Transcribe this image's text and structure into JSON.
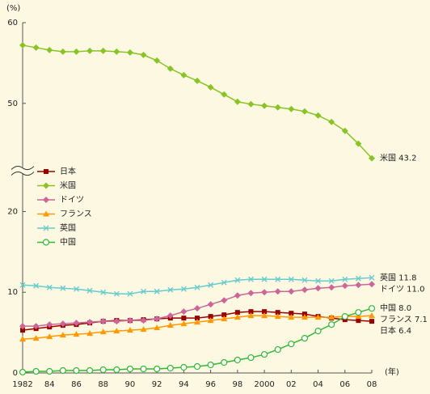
{
  "chart_data": {
    "type": "line",
    "y_unit": "(%)",
    "x_unit": "(年)",
    "x": [
      1982,
      1983,
      1984,
      1985,
      1986,
      1987,
      1988,
      1989,
      1990,
      1991,
      1992,
      1993,
      1994,
      1995,
      1996,
      1997,
      1998,
      1999,
      2000,
      2001,
      2002,
      2003,
      2004,
      2005,
      2006,
      2007,
      2008
    ],
    "xlim": [
      1982,
      2008
    ],
    "xticks": [
      {
        "value": 1982,
        "label": "1982"
      },
      {
        "value": 1984,
        "label": "84"
      },
      {
        "value": 1986,
        "label": "86"
      },
      {
        "value": 1988,
        "label": "88"
      },
      {
        "value": 1990,
        "label": "90"
      },
      {
        "value": 1992,
        "label": "92"
      },
      {
        "value": 1994,
        "label": "94"
      },
      {
        "value": 1996,
        "label": "96"
      },
      {
        "value": 1998,
        "label": "98"
      },
      {
        "value": 2000,
        "label": "2000"
      },
      {
        "value": 2002,
        "label": "02"
      },
      {
        "value": 2004,
        "label": "04"
      },
      {
        "value": 2006,
        "label": "06"
      },
      {
        "value": 2008,
        "label": "08"
      }
    ],
    "ylim": [
      0,
      60
    ],
    "y_break": [
      25,
      41.6
    ],
    "yticks": [
      0,
      10,
      20,
      50,
      60
    ],
    "legend": "left",
    "series": [
      {
        "name": "日本",
        "color": "#990000",
        "marker": "square",
        "end_label": "日本 6.4",
        "values": [
          5.3,
          5.5,
          5.7,
          5.9,
          6.0,
          6.2,
          6.4,
          6.5,
          6.5,
          6.6,
          6.7,
          6.8,
          6.8,
          6.8,
          7.0,
          7.2,
          7.5,
          7.6,
          7.6,
          7.5,
          7.4,
          7.3,
          7.0,
          6.8,
          6.6,
          6.5,
          6.4
        ]
      },
      {
        "name": "米国",
        "color": "#88c425",
        "marker": "diamond",
        "end_label": "米国 43.2",
        "values": [
          57.2,
          56.9,
          56.6,
          56.4,
          56.4,
          56.5,
          56.5,
          56.4,
          56.3,
          56.0,
          55.3,
          54.3,
          53.5,
          52.8,
          52.0,
          51.1,
          50.2,
          49.9,
          49.7,
          49.5,
          49.3,
          49.0,
          48.5,
          47.7,
          46.6,
          45.0,
          43.2
        ]
      },
      {
        "name": "ドイツ",
        "color": "#cc6699",
        "marker": "diamond",
        "end_label": "ドイツ 11.0",
        "values": [
          5.8,
          5.8,
          6.0,
          6.1,
          6.2,
          6.3,
          6.4,
          6.4,
          6.5,
          6.5,
          6.7,
          7.1,
          7.6,
          8.0,
          8.5,
          9.0,
          9.6,
          9.9,
          10.0,
          10.1,
          10.1,
          10.3,
          10.5,
          10.6,
          10.8,
          10.9,
          11.0
        ]
      },
      {
        "name": "フランス",
        "color": "#ff9900",
        "marker": "triangle",
        "end_label": "フランス 7.1",
        "values": [
          4.2,
          4.3,
          4.5,
          4.7,
          4.8,
          4.9,
          5.1,
          5.2,
          5.3,
          5.4,
          5.6,
          5.9,
          6.1,
          6.3,
          6.5,
          6.7,
          6.9,
          7.1,
          7.1,
          7.0,
          6.9,
          6.9,
          6.9,
          6.9,
          7.0,
          7.0,
          7.1
        ]
      },
      {
        "name": "英国",
        "color": "#66cccc",
        "marker": "cross",
        "end_label": "英国 11.8",
        "values": [
          10.9,
          10.8,
          10.6,
          10.5,
          10.4,
          10.2,
          10.0,
          9.8,
          9.8,
          10.1,
          10.1,
          10.3,
          10.4,
          10.6,
          10.9,
          11.2,
          11.5,
          11.6,
          11.6,
          11.6,
          11.6,
          11.5,
          11.4,
          11.4,
          11.6,
          11.7,
          11.8
        ]
      },
      {
        "name": "中国",
        "color": "#33b833",
        "marker": "circle",
        "end_label": "中国 8.0",
        "values": [
          0.1,
          0.2,
          0.2,
          0.3,
          0.3,
          0.3,
          0.4,
          0.4,
          0.5,
          0.5,
          0.5,
          0.6,
          0.7,
          0.8,
          1.0,
          1.3,
          1.6,
          1.9,
          2.3,
          2.9,
          3.6,
          4.3,
          5.2,
          6.0,
          7.0,
          7.5,
          8.0
        ]
      }
    ]
  }
}
